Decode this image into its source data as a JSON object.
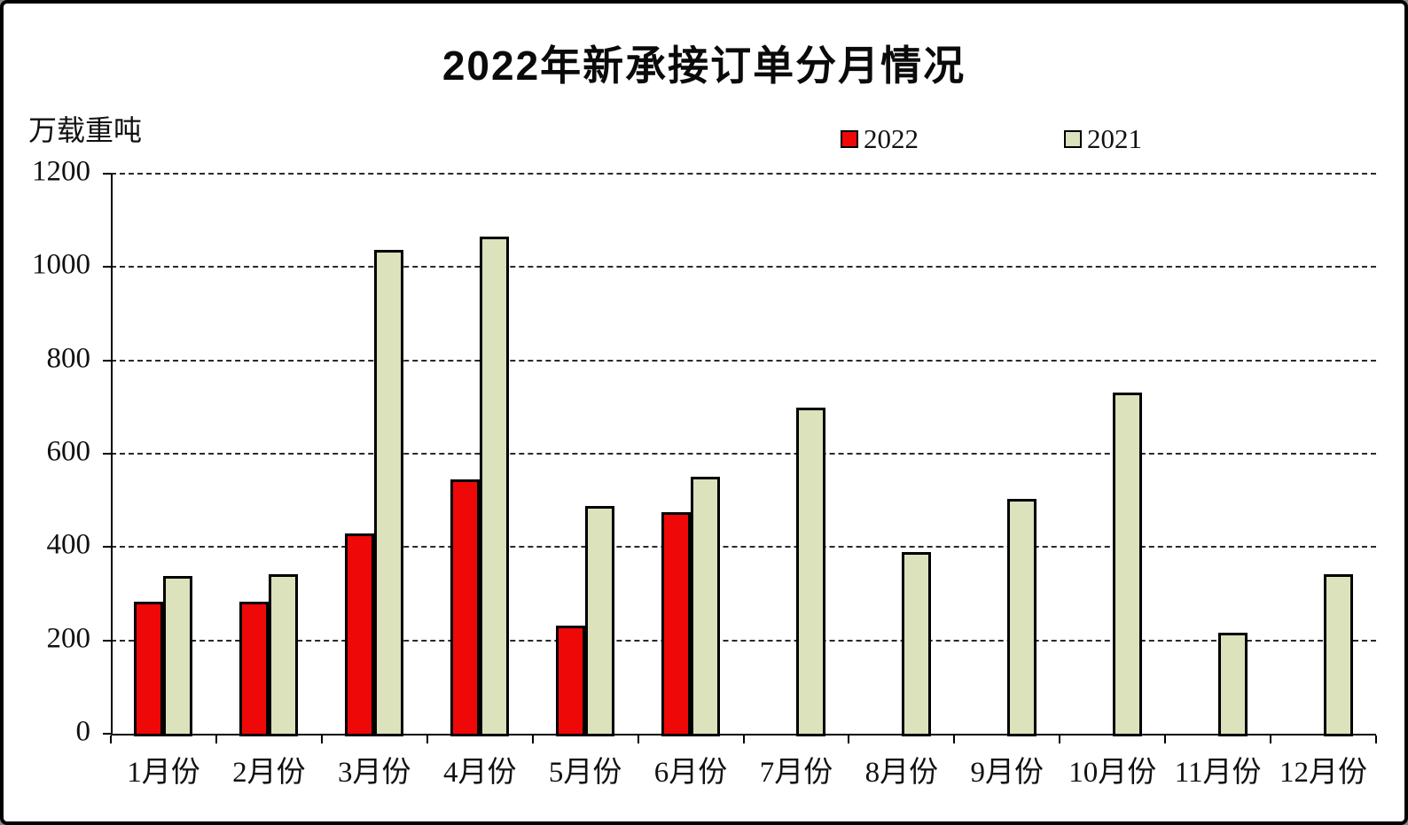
{
  "frame": {
    "background": "#ffffff",
    "border_color": "#000000"
  },
  "header": {
    "title": "2022年新承接订单分月情况"
  },
  "y_axis": {
    "unit_label": "万载重吨"
  },
  "legend": {
    "items": [
      {
        "label": "2022",
        "color": "#ee0808"
      },
      {
        "label": "2021",
        "color": "#dbe2bc"
      }
    ]
  },
  "chart_data": {
    "type": "bar",
    "title": "2022年新承接订单分月情况",
    "ylabel": "万载重吨",
    "categories": [
      "1月份",
      "2月份",
      "3月份",
      "4月份",
      "5月份",
      "6月份",
      "7月份",
      "8月份",
      "9月份",
      "10月份",
      "11月份",
      "12月份"
    ],
    "series": [
      {
        "name": "2022",
        "color": "#ee0808",
        "values": [
          283,
          282,
          430,
          544,
          232,
          475,
          null,
          null,
          null,
          null,
          null,
          null
        ]
      },
      {
        "name": "2021",
        "color": "#dbe2bc",
        "values": [
          338,
          342,
          1036,
          1066,
          488,
          550,
          699,
          390,
          504,
          731,
          216,
          341
        ]
      }
    ],
    "ylim": [
      0,
      1200
    ],
    "yticks": [
      0,
      200,
      400,
      600,
      800,
      1000,
      1200
    ],
    "grid": "horizontal-dashed",
    "legend_position": "top-right",
    "bar_border_color": "#000000"
  }
}
